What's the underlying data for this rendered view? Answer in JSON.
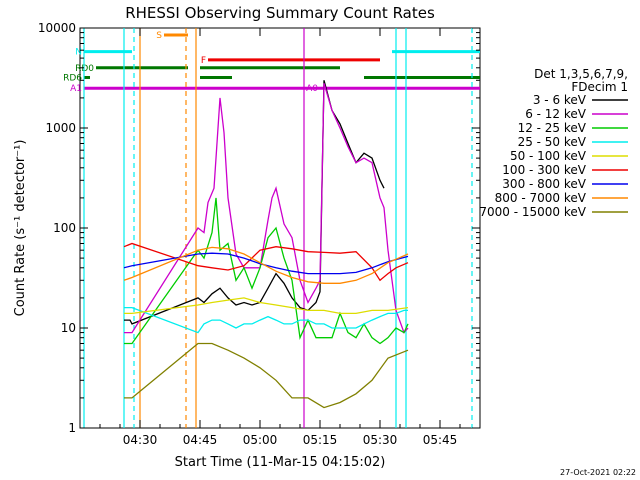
{
  "chart_data": {
    "type": "line",
    "title": "RHESSI Observing Summary Count Rates",
    "xlabel": "Start Time (11-Mar-15 04:15:02)",
    "ylabel": "Count Rate (s⁻¹ detector⁻¹)",
    "y_scale": "log",
    "ylim": [
      1,
      10000
    ],
    "xlim": [
      "04:15",
      "05:55"
    ],
    "xticks": [
      "04:30",
      "04:45",
      "05:00",
      "05:15",
      "05:30",
      "05:45"
    ],
    "yticks": [
      "1",
      "10",
      "100",
      "1000",
      "10000"
    ],
    "grid": false,
    "legend_position": "right",
    "legend_header": [
      "Det 1,3,5,6,7,9,",
      "FDecim 1"
    ],
    "footer_date": "27-Oct-2021 02:22",
    "series": [
      {
        "name": "3 - 6 keV",
        "color": "#000000",
        "points": [
          [
            "04:26:00",
            12
          ],
          [
            "04:27:30",
            12
          ],
          [
            "04:28:00",
            11
          ],
          [
            "04:44:30",
            20
          ],
          [
            "04:46:00",
            18
          ],
          [
            "04:48:00",
            22
          ],
          [
            "04:50:00",
            25
          ],
          [
            "04:52:00",
            20
          ],
          [
            "04:54:00",
            17
          ],
          [
            "04:56:00",
            18
          ],
          [
            "04:58:00",
            17
          ],
          [
            "05:00:00",
            18
          ],
          [
            "05:02:00",
            25
          ],
          [
            "05:04:00",
            35
          ],
          [
            "05:06:00",
            28
          ],
          [
            "05:08:00",
            20
          ],
          [
            "05:10:00",
            16
          ],
          [
            "05:12:00",
            15
          ],
          [
            "05:14:00",
            18
          ],
          [
            "05:15:00",
            23
          ],
          [
            "05:16:00",
            3000
          ],
          [
            "05:18:00",
            1500
          ],
          [
            "05:20:00",
            1100
          ],
          [
            "05:22:00",
            700
          ],
          [
            "05:24:00",
            450
          ],
          [
            "05:26:00",
            560
          ],
          [
            "05:28:00",
            500
          ],
          [
            "05:30:00",
            300
          ],
          [
            "05:31:00",
            250
          ]
        ]
      },
      {
        "name": "6 - 12 keV",
        "color": "#cc00cc",
        "points": [
          [
            "04:26:00",
            9
          ],
          [
            "04:28:00",
            9
          ],
          [
            "04:44:30",
            100
          ],
          [
            "04:46:00",
            90
          ],
          [
            "04:47:00",
            180
          ],
          [
            "04:48:30",
            250
          ],
          [
            "04:50:00",
            2000
          ],
          [
            "04:51:00",
            900
          ],
          [
            "04:52:00",
            200
          ],
          [
            "04:54:00",
            55
          ],
          [
            "04:56:00",
            40
          ],
          [
            "04:58:00",
            40
          ],
          [
            "05:00:00",
            40
          ],
          [
            "05:02:00",
            120
          ],
          [
            "05:03:00",
            200
          ],
          [
            "05:04:00",
            250
          ],
          [
            "05:06:00",
            110
          ],
          [
            "05:08:00",
            80
          ],
          [
            "05:10:00",
            30
          ],
          [
            "05:12:00",
            18
          ],
          [
            "05:14:00",
            25
          ],
          [
            "05:15:00",
            30
          ],
          [
            "05:16:00",
            2800
          ],
          [
            "05:18:00",
            1500
          ],
          [
            "05:20:00",
            1000
          ],
          [
            "05:22:00",
            650
          ],
          [
            "05:24:00",
            450
          ],
          [
            "05:26:00",
            500
          ],
          [
            "05:28:00",
            450
          ],
          [
            "05:30:00",
            200
          ],
          [
            "05:31:00",
            160
          ],
          [
            "05:32:00",
            60
          ],
          [
            "05:34:00",
            15
          ],
          [
            "05:36:00",
            9
          ],
          [
            "05:37:00",
            10
          ]
        ]
      },
      {
        "name": "12 - 25 keV",
        "color": "#00cc00",
        "points": [
          [
            "04:26:00",
            7
          ],
          [
            "04:28:00",
            7
          ],
          [
            "04:44:30",
            60
          ],
          [
            "04:46:00",
            50
          ],
          [
            "04:48:00",
            90
          ],
          [
            "04:49:00",
            200
          ],
          [
            "04:50:00",
            60
          ],
          [
            "04:52:00",
            70
          ],
          [
            "04:54:00",
            30
          ],
          [
            "04:56:00",
            40
          ],
          [
            "04:58:00",
            25
          ],
          [
            "05:00:00",
            40
          ],
          [
            "05:02:00",
            80
          ],
          [
            "05:04:00",
            100
          ],
          [
            "05:06:00",
            50
          ],
          [
            "05:08:00",
            30
          ],
          [
            "05:10:00",
            8
          ],
          [
            "05:12:00",
            12
          ],
          [
            "05:14:00",
            8
          ],
          [
            "05:16:00",
            8
          ],
          [
            "05:18:00",
            8
          ],
          [
            "05:20:00",
            14
          ],
          [
            "05:22:00",
            9
          ],
          [
            "05:24:00",
            8
          ],
          [
            "05:26:00",
            11
          ],
          [
            "05:28:00",
            8
          ],
          [
            "05:30:00",
            7
          ],
          [
            "05:32:00",
            8
          ],
          [
            "05:34:00",
            10
          ],
          [
            "05:36:00",
            9
          ],
          [
            "05:37:00",
            11
          ]
        ]
      },
      {
        "name": "25 - 50 keV",
        "color": "#00eeee",
        "points": [
          [
            "04:26:00",
            16
          ],
          [
            "04:28:00",
            16
          ],
          [
            "04:44:30",
            9
          ],
          [
            "04:46:00",
            11
          ],
          [
            "04:48:00",
            12
          ],
          [
            "04:50:00",
            12
          ],
          [
            "04:52:00",
            11
          ],
          [
            "04:54:00",
            10
          ],
          [
            "04:56:00",
            11
          ],
          [
            "04:58:00",
            11
          ],
          [
            "05:00:00",
            12
          ],
          [
            "05:02:00",
            13
          ],
          [
            "05:04:00",
            12
          ],
          [
            "05:06:00",
            11
          ],
          [
            "05:08:00",
            11
          ],
          [
            "05:10:00",
            12
          ],
          [
            "05:12:00",
            12
          ],
          [
            "05:14:00",
            11
          ],
          [
            "05:16:00",
            11
          ],
          [
            "05:18:00",
            10
          ],
          [
            "05:20:00",
            10
          ],
          [
            "05:22:00",
            10
          ],
          [
            "05:24:00",
            10
          ],
          [
            "05:26:00",
            11
          ],
          [
            "05:28:00",
            12
          ],
          [
            "05:30:00",
            13
          ],
          [
            "05:32:00",
            14
          ],
          [
            "05:34:00",
            14
          ],
          [
            "05:36:00",
            15
          ],
          [
            "05:37:00",
            15
          ]
        ]
      },
      {
        "name": "50 - 100 keV",
        "color": "#dddd00",
        "points": [
          [
            "04:26:00",
            14
          ],
          [
            "04:28:00",
            14
          ],
          [
            "04:44:30",
            17
          ],
          [
            "04:48:00",
            18
          ],
          [
            "04:52:00",
            19
          ],
          [
            "04:56:00",
            20
          ],
          [
            "05:00:00",
            18
          ],
          [
            "05:04:00",
            17
          ],
          [
            "05:08:00",
            16
          ],
          [
            "05:12:00",
            15
          ],
          [
            "05:16:00",
            15
          ],
          [
            "05:20:00",
            14
          ],
          [
            "05:24:00",
            14
          ],
          [
            "05:28:00",
            15
          ],
          [
            "05:32:00",
            15
          ],
          [
            "05:37:00",
            16
          ]
        ]
      },
      {
        "name": "100 - 300 keV",
        "color": "#ee0000",
        "points": [
          [
            "04:26:00",
            65
          ],
          [
            "04:28:00",
            70
          ],
          [
            "04:44:30",
            42
          ],
          [
            "04:48:00",
            40
          ],
          [
            "04:52:00",
            38
          ],
          [
            "04:56:00",
            42
          ],
          [
            "05:00:00",
            60
          ],
          [
            "05:04:00",
            65
          ],
          [
            "05:08:00",
            62
          ],
          [
            "05:12:00",
            58
          ],
          [
            "05:16:00",
            57
          ],
          [
            "05:20:00",
            56
          ],
          [
            "05:24:00",
            58
          ],
          [
            "05:28:00",
            40
          ],
          [
            "05:30:00",
            30
          ],
          [
            "05:32:00",
            35
          ],
          [
            "05:34:00",
            40
          ],
          [
            "05:37:00",
            45
          ]
        ]
      },
      {
        "name": "300 - 800 keV",
        "color": "#0000ee",
        "points": [
          [
            "04:26:00",
            40
          ],
          [
            "04:28:00",
            42
          ],
          [
            "04:44:30",
            55
          ],
          [
            "04:48:00",
            56
          ],
          [
            "04:52:00",
            55
          ],
          [
            "04:56:00",
            50
          ],
          [
            "05:00:00",
            44
          ],
          [
            "05:04:00",
            40
          ],
          [
            "05:08:00",
            37
          ],
          [
            "05:12:00",
            35
          ],
          [
            "05:16:00",
            35
          ],
          [
            "05:20:00",
            35
          ],
          [
            "05:24:00",
            36
          ],
          [
            "05:28:00",
            40
          ],
          [
            "05:32:00",
            46
          ],
          [
            "05:37:00",
            52
          ]
        ]
      },
      {
        "name": "800 - 7000 keV",
        "color": "#ff8800",
        "points": [
          [
            "04:26:00",
            30
          ],
          [
            "04:28:00",
            32
          ],
          [
            "04:44:30",
            60
          ],
          [
            "04:48:00",
            64
          ],
          [
            "04:52:00",
            62
          ],
          [
            "04:56:00",
            55
          ],
          [
            "05:00:00",
            45
          ],
          [
            "05:04:00",
            37
          ],
          [
            "05:08:00",
            32
          ],
          [
            "05:12:00",
            29
          ],
          [
            "05:16:00",
            28
          ],
          [
            "05:20:00",
            28
          ],
          [
            "05:24:00",
            30
          ],
          [
            "05:28:00",
            35
          ],
          [
            "05:32:00",
            45
          ],
          [
            "05:37:00",
            55
          ]
        ]
      },
      {
        "name": "7000 - 15000 keV",
        "color": "#808000",
        "points": [
          [
            "04:26:00",
            2
          ],
          [
            "04:28:00",
            2
          ],
          [
            "04:44:30",
            7
          ],
          [
            "04:48:00",
            7
          ],
          [
            "04:52:00",
            6
          ],
          [
            "04:56:00",
            5
          ],
          [
            "05:00:00",
            4
          ],
          [
            "05:04:00",
            3
          ],
          [
            "05:08:00",
            2
          ],
          [
            "05:12:00",
            2
          ],
          [
            "05:16:00",
            1.6
          ],
          [
            "05:20:00",
            1.8
          ],
          [
            "05:24:00",
            2.2
          ],
          [
            "05:28:00",
            3
          ],
          [
            "05:32:00",
            5
          ],
          [
            "05:37:00",
            6
          ]
        ]
      }
    ],
    "annotations": {
      "flags": [
        {
          "label": "S",
          "color": "#ff8800",
          "start": "04:36:00",
          "end": "04:42:00",
          "value": 8500
        },
        {
          "label": "N",
          "color": "#00eeee",
          "start": "04:16:00",
          "end": "04:28:00",
          "value": 5800
        },
        {
          "label": "",
          "color": "#00eeee",
          "start": "05:33:00",
          "end": "05:55:00",
          "value": 5800
        },
        {
          "label": "F",
          "color": "#ee0000",
          "start": "04:47:00",
          "end": "05:30:00",
          "value": 4800
        },
        {
          "label": "RD0",
          "color": "#007700",
          "start": "04:19:00",
          "end": "04:42:00",
          "value": 4000
        },
        {
          "label": "",
          "color": "#007700",
          "start": "04:45:00",
          "end": "05:20:00",
          "value": 4000
        },
        {
          "label": "RD6",
          "color": "#007700",
          "start": "04:16:00",
          "end": "04:17:30",
          "value": 3200
        },
        {
          "label": "",
          "color": "#007700",
          "start": "04:45:00",
          "end": "04:53:00",
          "value": 3200
        },
        {
          "label": "",
          "color": "#007700",
          "start": "05:26:00",
          "end": "05:55:00",
          "value": 3200
        },
        {
          "label": "A1",
          "color": "#cc00cc",
          "start": "04:16:00",
          "end": "05:15:00",
          "value": 2500
        },
        {
          "label": "A0",
          "color": "#cc00cc",
          "start": "05:15:00",
          "end": "05:55:00",
          "value": 2500
        }
      ],
      "vertical_lines": [
        {
          "time": "04:16:00",
          "color": "#00eeee",
          "style": "solid"
        },
        {
          "time": "04:26:00",
          "color": "#00eeee",
          "style": "solid"
        },
        {
          "time": "04:28:30",
          "color": "#00eeee",
          "style": "dashed"
        },
        {
          "time": "04:30:00",
          "color": "#ff8800",
          "style": "solid"
        },
        {
          "time": "04:41:30",
          "color": "#ff8800",
          "style": "dashed"
        },
        {
          "time": "04:44:00",
          "color": "#ff8800",
          "style": "solid"
        },
        {
          "time": "05:11:00",
          "color": "#cc00cc",
          "style": "solid"
        },
        {
          "time": "05:34:00",
          "color": "#00eeee",
          "style": "solid"
        },
        {
          "time": "05:36:30",
          "color": "#00eeee",
          "style": "solid"
        },
        {
          "time": "05:53:00",
          "color": "#00eeee",
          "style": "dashed"
        }
      ]
    }
  }
}
